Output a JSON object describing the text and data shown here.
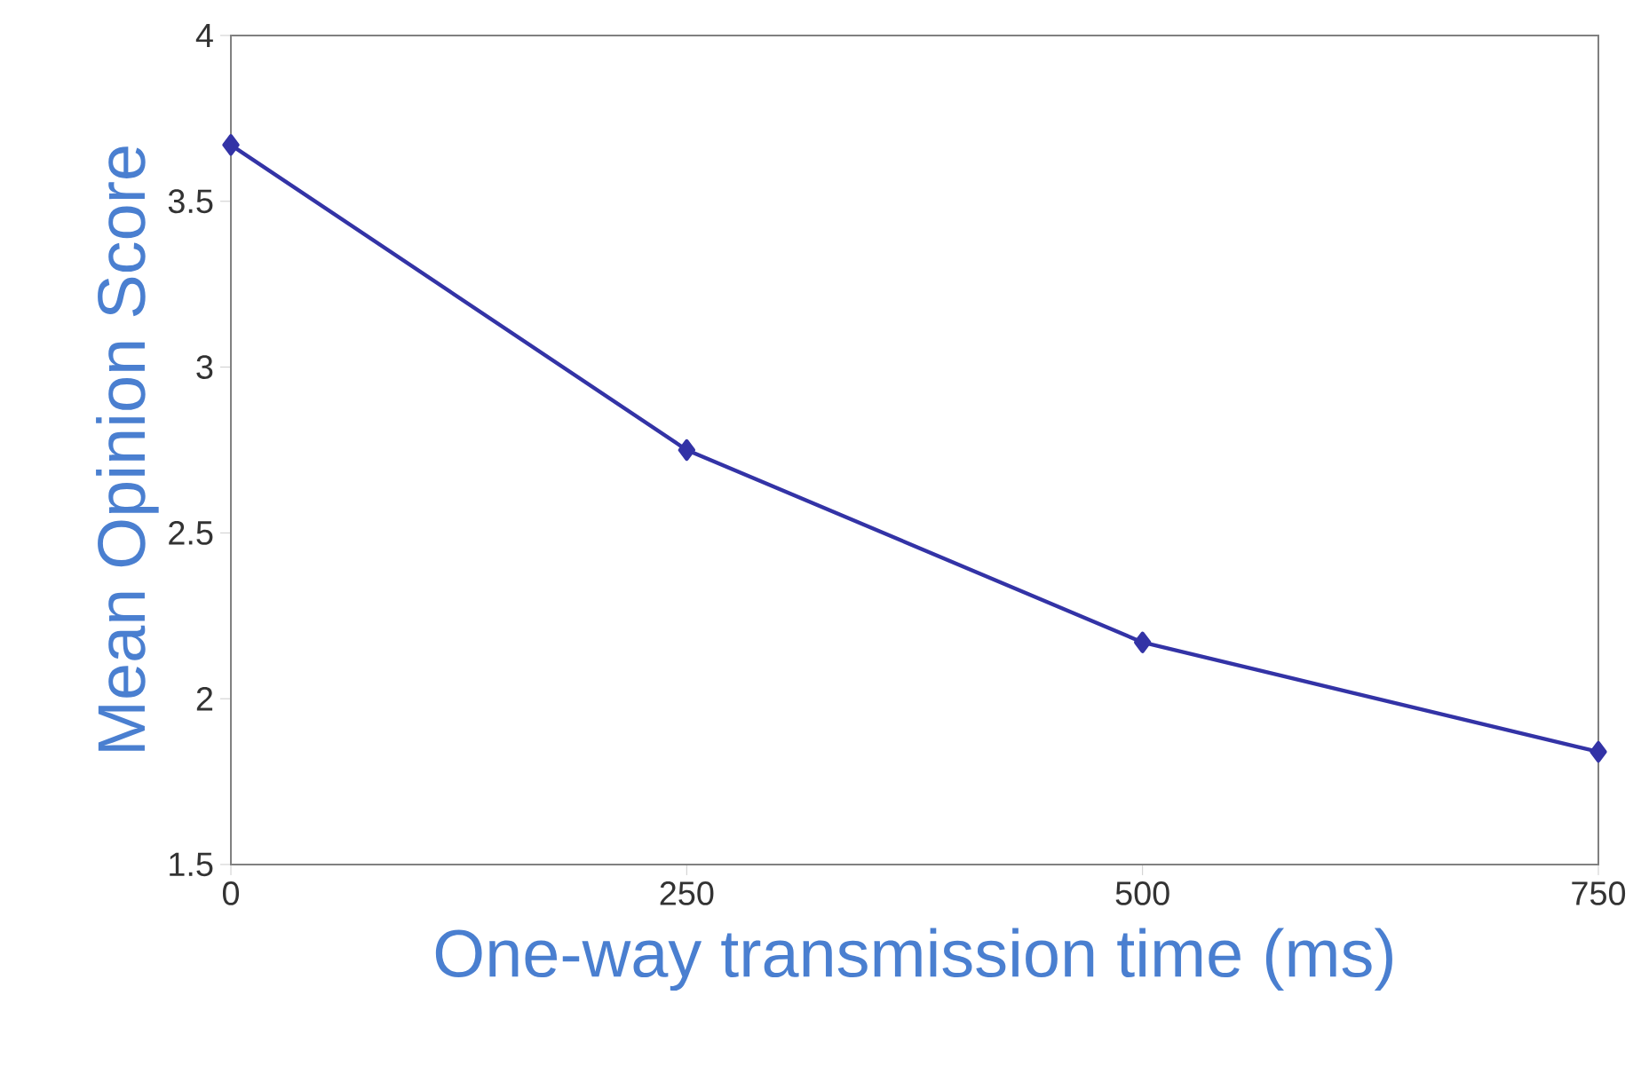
{
  "chart_data": {
    "type": "line",
    "xlabel": "One-way transmission time (ms)",
    "ylabel": "Mean Opinion Score",
    "x": [
      0,
      250,
      500,
      750
    ],
    "series": [
      {
        "color": "#3333a6",
        "values": [
          3.67,
          2.75,
          2.17,
          1.84
        ]
      }
    ],
    "xlim": [
      0,
      750
    ],
    "xticks": [
      0,
      250,
      500,
      750
    ],
    "ylim": [
      1.5,
      4
    ],
    "yticks": [
      1.5,
      {
        "value": 2,
        "label": "2"
      },
      2.5,
      {
        "value": 3,
        "label": "3"
      },
      3.5,
      {
        "value": 4,
        "label": "4"
      }
    ],
    "marker": "diamond",
    "line_style": "solid"
  }
}
